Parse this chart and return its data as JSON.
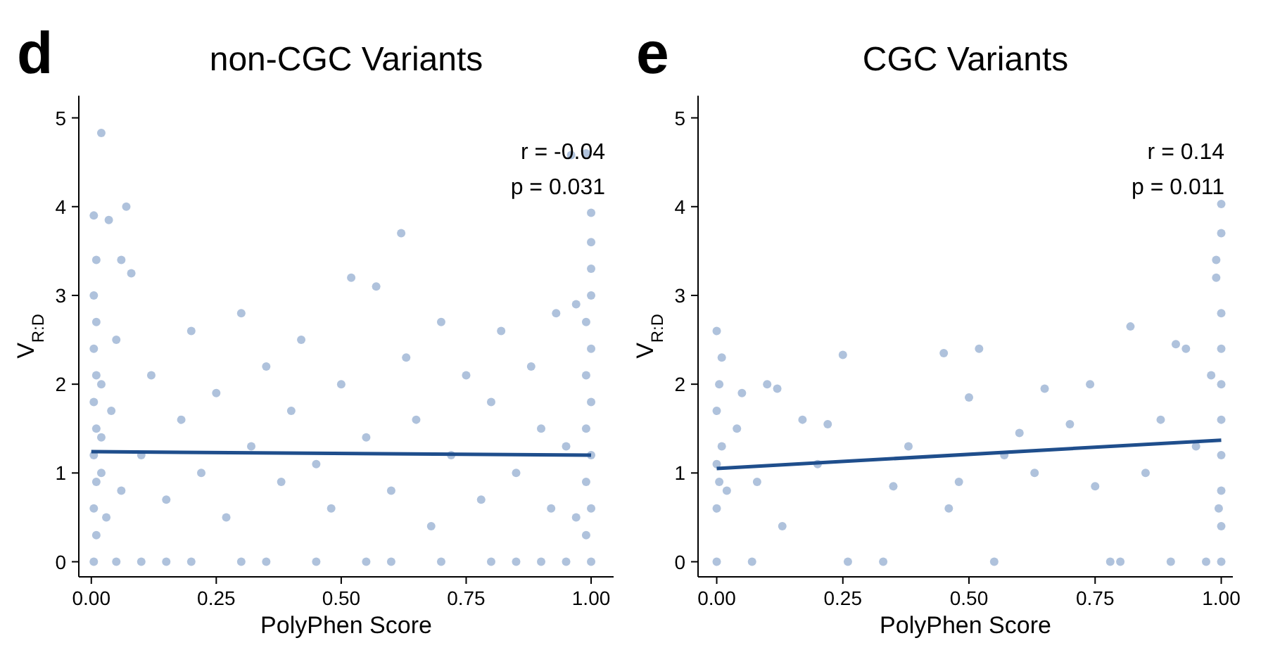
{
  "chart_data": [
    {
      "type": "scatter",
      "title": "non-CGC Variants",
      "xlabel": "PolyPhen Score",
      "ylabel": "V$_{R:D}$",
      "annotations": [
        "d",
        "r = -0.04",
        "p = 0.031"
      ],
      "xlim": [
        -0.025,
        1.045
      ],
      "ylim": [
        -0.17,
        5.25
      ],
      "xticks": [
        {
          "value": 0,
          "label": "0.00"
        },
        {
          "value": 0.25,
          "label": "0.25"
        },
        {
          "value": 0.5,
          "label": "0.50"
        },
        {
          "value": 0.75,
          "label": "0.75"
        },
        {
          "value": 1,
          "label": "1.00"
        }
      ],
      "yticks": [
        0,
        1,
        2,
        3,
        4,
        5
      ],
      "grid": false,
      "series": [
        {
          "marker": "circle",
          "color": "#afc2dc",
          "x": [
            0.005,
            0.01,
            0.005,
            0.01,
            0.005,
            0.01,
            0.005,
            0.01,
            0.005,
            0.01,
            0.005,
            0.01,
            0.005,
            0.02,
            0.02,
            0.02,
            0.02,
            0.03,
            0.035,
            0.06,
            0.07,
            0.08,
            0.05,
            0.04,
            0.06,
            0.1,
            0.12,
            0.15,
            0.18,
            0.2,
            0.22,
            0.25,
            0.27,
            0.3,
            0.32,
            0.35,
            0.38,
            0.4,
            0.42,
            0.45,
            0.48,
            0.5,
            0.52,
            0.55,
            0.57,
            0.6,
            0.62,
            0.63,
            0.65,
            0.68,
            0.7,
            0.72,
            0.75,
            0.78,
            0.8,
            0.82,
            0.85,
            0.88,
            0.9,
            0.92,
            0.93,
            0.05,
            0.1,
            0.15,
            0.2,
            0.3,
            0.35,
            0.45,
            0.55,
            0.6,
            0.7,
            0.8,
            0.85,
            0.9,
            0.95,
            1,
            0.99,
            1,
            0.99,
            1,
            0.99,
            1,
            0.99,
            1,
            0.99,
            1,
            1,
            1,
            1,
            0.99,
            0.96,
            0.97,
            0.95,
            0.97
          ],
          "values": [
            0,
            0.3,
            0.6,
            0.9,
            1.2,
            1.5,
            1.8,
            2.1,
            2.4,
            2.7,
            3.0,
            3.4,
            3.9,
            4.83,
            1.0,
            1.4,
            2.0,
            0.5,
            3.85,
            3.4,
            4.0,
            3.25,
            2.5,
            1.7,
            0.8,
            1.2,
            2.1,
            0.7,
            1.6,
            2.6,
            1.0,
            1.9,
            0.5,
            2.8,
            1.3,
            2.2,
            0.9,
            1.7,
            2.5,
            1.1,
            0.6,
            2.0,
            3.2,
            1.4,
            3.1,
            0.8,
            3.7,
            2.3,
            1.6,
            0.4,
            2.7,
            1.2,
            2.1,
            0.7,
            1.8,
            2.6,
            1.0,
            2.2,
            1.5,
            0.6,
            2.8,
            0,
            0,
            0,
            0,
            0,
            0,
            0,
            0,
            0,
            0,
            0,
            0,
            0,
            0,
            0,
            0.3,
            0.6,
            0.9,
            1.2,
            1.5,
            1.8,
            2.1,
            2.4,
            2.7,
            3.0,
            3.3,
            3.6,
            3.93,
            4.6,
            4.58,
            2.9,
            1.3,
            0.5
          ]
        },
        {
          "type": "line",
          "color": "#1f4e8c",
          "x": [
            0,
            1
          ],
          "values": [
            1.24,
            1.2
          ]
        }
      ]
    },
    {
      "type": "scatter",
      "title": "CGC Variants",
      "xlabel": "PolyPhen Score",
      "ylabel": "V$_{R:D}$",
      "annotations": [
        "e",
        "r = 0.14",
        "p = 0.011"
      ],
      "xlim": [
        -0.037,
        1.023
      ],
      "ylim": [
        -0.17,
        5.25
      ],
      "xticks": [
        {
          "value": 0,
          "label": "0.00"
        },
        {
          "value": 0.25,
          "label": "0.25"
        },
        {
          "value": 0.5,
          "label": "0.50"
        },
        {
          "value": 0.75,
          "label": "0.75"
        },
        {
          "value": 1,
          "label": "1.00"
        }
      ],
      "yticks": [
        0,
        1,
        2,
        3,
        4,
        5
      ],
      "grid": false,
      "series": [
        {
          "marker": "circle",
          "color": "#afc2dc",
          "x": [
            0,
            0,
            0.005,
            0,
            0.01,
            0,
            0.005,
            0.01,
            0,
            0.02,
            0.04,
            0.05,
            0.07,
            0.08,
            0.1,
            0.12,
            0.13,
            0.17,
            0.2,
            0.22,
            0.25,
            0.26,
            0.33,
            0.35,
            0.38,
            0.45,
            0.46,
            0.48,
            0.5,
            0.52,
            0.55,
            0.57,
            0.6,
            0.63,
            0.65,
            0.7,
            0.74,
            0.75,
            0.78,
            0.8,
            0.82,
            0.85,
            0.88,
            0.9,
            0.91,
            0.93,
            0.95,
            0.97,
            0.98,
            1,
            1,
            1,
            1,
            1,
            1,
            1,
            1,
            0.99,
            1,
            1,
            0.99,
            0.995
          ],
          "values": [
            0,
            0.6,
            0.9,
            1.1,
            1.3,
            1.7,
            2.0,
            2.3,
            2.6,
            0.8,
            1.5,
            1.9,
            0,
            0.9,
            2.0,
            1.95,
            0.4,
            1.6,
            1.1,
            1.55,
            2.33,
            0,
            0,
            0.85,
            1.3,
            2.35,
            0.6,
            0.9,
            1.85,
            2.4,
            0,
            1.2,
            1.45,
            1.0,
            1.95,
            1.55,
            2.0,
            0.85,
            0,
            0,
            2.65,
            1.0,
            1.6,
            0,
            2.45,
            2.4,
            1.3,
            0,
            2.1,
            0,
            0.4,
            0.8,
            1.2,
            1.6,
            2.0,
            2.4,
            2.8,
            3.2,
            3.7,
            4.03,
            3.4,
            0.6
          ]
        },
        {
          "type": "line",
          "color": "#1f4e8c",
          "x": [
            0,
            1
          ],
          "values": [
            1.05,
            1.37
          ]
        }
      ]
    }
  ]
}
